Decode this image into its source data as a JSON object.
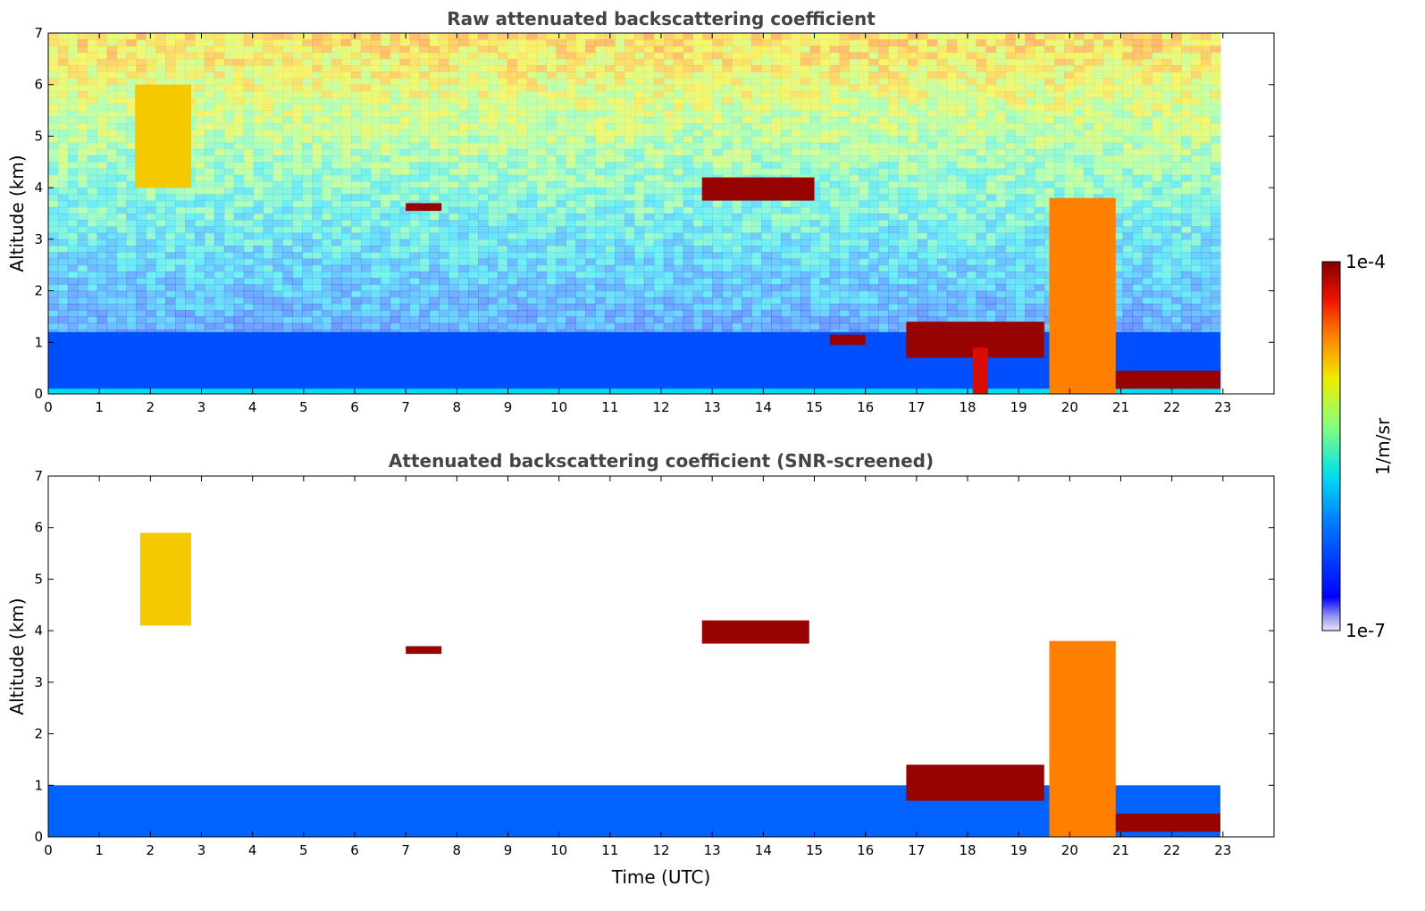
{
  "chart_data": [
    {
      "type": "heatmap",
      "title": "Raw attenuated backscattering coefficient",
      "xlabel": "",
      "ylabel": "Altitude (km)",
      "xlim": [
        0,
        24
      ],
      "ylim": [
        0,
        7
      ],
      "x_ticks": [
        0,
        1,
        2,
        3,
        4,
        5,
        6,
        7,
        8,
        9,
        10,
        11,
        12,
        13,
        14,
        15,
        16,
        17,
        18,
        19,
        20,
        21,
        22,
        23
      ],
      "y_ticks": [
        0,
        1,
        2,
        3,
        4,
        5,
        6,
        7
      ],
      "data_end_time": 22.95,
      "features": [
        {
          "name": "surface layer",
          "t0": 0,
          "t1": 22.95,
          "z0": 0,
          "z1": 0.5,
          "level": 0.42
        },
        {
          "name": "boundary layer",
          "t0": 0,
          "t1": 22.95,
          "z0": 0.1,
          "z1": 1.2,
          "level": 0.22
        },
        {
          "name": "fall streak",
          "t0": 1.7,
          "t1": 2.8,
          "z0": 4.0,
          "z1": 6.0,
          "level": 0.72
        },
        {
          "name": "cloud 3.6 km",
          "t0": 7.0,
          "t1": 7.7,
          "z0": 3.55,
          "z1": 3.7,
          "level": 0.98
        },
        {
          "name": "cloud 4 km",
          "t0": 12.8,
          "t1": 15.0,
          "z0": 3.75,
          "z1": 4.2,
          "level": 0.98
        },
        {
          "name": "cloud 1 km",
          "t0": 15.3,
          "t1": 16.0,
          "z0": 0.95,
          "z1": 1.15,
          "level": 0.98
        },
        {
          "name": "descending cloud",
          "t0": 16.8,
          "t1": 19.5,
          "z0": 0.7,
          "z1": 1.4,
          "level": 0.98
        },
        {
          "name": "convective column",
          "t0": 19.6,
          "t1": 20.9,
          "z0": 0,
          "z1": 3.8,
          "level": 0.8
        },
        {
          "name": "precipitation 18 h",
          "t0": 18.1,
          "t1": 18.4,
          "z0": 0,
          "z1": 0.9,
          "level": 0.92
        },
        {
          "name": "low cloud",
          "t0": 20.9,
          "t1": 22.95,
          "z0": 0.1,
          "z1": 0.45,
          "level": 0.98
        }
      ]
    },
    {
      "type": "heatmap",
      "title": "Attenuated backscattering coefficient (SNR-screened)",
      "xlabel": "Time (UTC)",
      "ylabel": "Altitude (km)",
      "xlim": [
        0,
        24
      ],
      "ylim": [
        0,
        7
      ],
      "x_ticks": [
        0,
        1,
        2,
        3,
        4,
        5,
        6,
        7,
        8,
        9,
        10,
        11,
        12,
        13,
        14,
        15,
        16,
        17,
        18,
        19,
        20,
        21,
        22,
        23
      ],
      "y_ticks": [
        0,
        1,
        2,
        3,
        4,
        5,
        6,
        7
      ],
      "data_end_time": 22.95,
      "features": [
        {
          "name": "boundary layer",
          "t0": 0,
          "t1": 22.95,
          "z0": 0,
          "z1": 1.0,
          "level": 0.25
        },
        {
          "name": "fall streak",
          "t0": 1.8,
          "t1": 2.8,
          "z0": 4.1,
          "z1": 5.9,
          "level": 0.72
        },
        {
          "name": "cloud 3.6 km",
          "t0": 7.0,
          "t1": 7.7,
          "z0": 3.55,
          "z1": 3.7,
          "level": 0.98
        },
        {
          "name": "cloud 4 km",
          "t0": 12.8,
          "t1": 14.9,
          "z0": 3.75,
          "z1": 4.2,
          "level": 0.98
        },
        {
          "name": "descending cloud",
          "t0": 16.8,
          "t1": 19.5,
          "z0": 0.7,
          "z1": 1.4,
          "level": 0.98
        },
        {
          "name": "convective column",
          "t0": 19.6,
          "t1": 20.9,
          "z0": 0,
          "z1": 3.8,
          "level": 0.8
        },
        {
          "name": "low cloud",
          "t0": 20.9,
          "t1": 22.95,
          "z0": 0.1,
          "z1": 0.45,
          "level": 0.98
        }
      ]
    }
  ],
  "colorbar": {
    "min_label": "1e-7",
    "max_label": "1e-4",
    "label": "1/m/sr",
    "colormap": "jet"
  }
}
